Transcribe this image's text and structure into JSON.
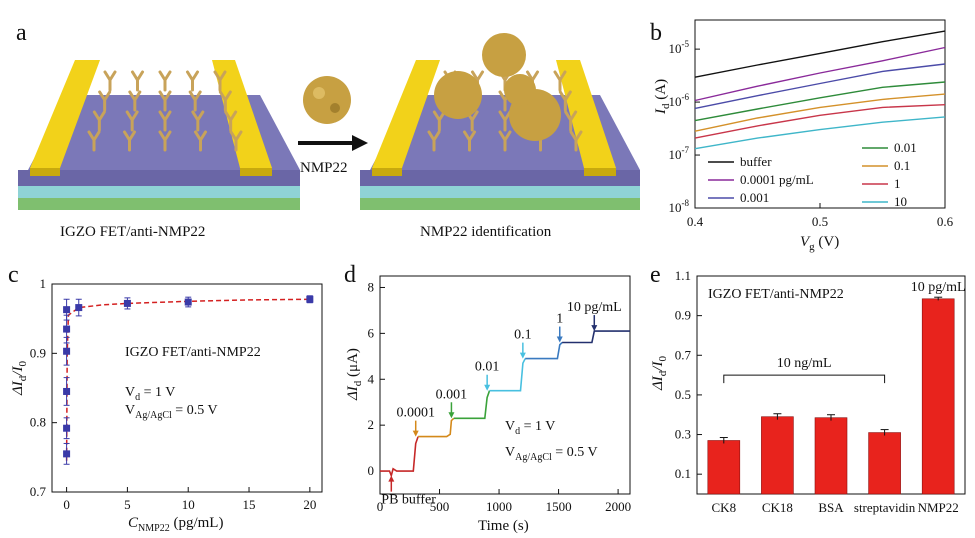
{
  "panels": {
    "a": {
      "label": "a",
      "left_caption": "IGZO FET/anti-NMP22",
      "right_caption": "NMP22 identification",
      "arrow_label": "NMP22"
    },
    "b": {
      "label": "b"
    },
    "c": {
      "label": "c"
    },
    "d": {
      "label": "d"
    },
    "e": {
      "label": "e"
    }
  },
  "colors": {
    "device_top": "#7b78b8",
    "device_side": "#6a66a6",
    "layer_cyan": "#8fd3d6",
    "layer_green": "#7fbf6f",
    "electrode": "#f2d21a",
    "electrode_side": "#c8a90e",
    "antibody": "#c8a35a",
    "protein": "#c7a042",
    "bar_red": "#e8231d",
    "marker_blue": "#3a3aa8",
    "fit_red": "#d42020"
  },
  "chart_data": [
    {
      "id": "b",
      "type": "line",
      "title": "",
      "xlabel": "V_g (V)",
      "xlabel_main": "V",
      "xlabel_sub": "g",
      "xlabel_unit": " (V)",
      "ylabel_main": "I",
      "ylabel_sub": "d",
      "ylabel_unit": " (A)",
      "yscale": "log",
      "xlim": [
        0.4,
        0.6
      ],
      "ylim_exp": [
        -8,
        -4.45
      ],
      "x_ticks": [
        "0.4",
        "0.5",
        "0.6"
      ],
      "x_tick_values": [
        0.4,
        0.5,
        0.6
      ],
      "y_ticks": [
        {
          "base": "10",
          "exp": "-5",
          "value": -5
        },
        {
          "base": "10",
          "exp": "-6",
          "value": -6
        },
        {
          "base": "10",
          "exp": "-7",
          "value": -7
        },
        {
          "base": "10",
          "exp": "-8",
          "value": -8
        }
      ],
      "x": [
        0.4,
        0.45,
        0.5,
        0.55,
        0.6
      ],
      "series": [
        {
          "name": "buffer",
          "color": "#111111",
          "log10_values": [
            -5.53,
            -5.3,
            -5.08,
            -4.86,
            -4.66
          ]
        },
        {
          "name": "0.0001 pg/mL",
          "color": "#8a2a9a",
          "log10_values": [
            -5.97,
            -5.7,
            -5.45,
            -5.22,
            -4.97
          ]
        },
        {
          "name": "0.001",
          "color": "#4b4ba8",
          "log10_values": [
            -6.12,
            -5.88,
            -5.65,
            -5.42,
            -5.28
          ]
        },
        {
          "name": "0.01",
          "color": "#2e8b3a",
          "log10_values": [
            -6.35,
            -6.13,
            -5.92,
            -5.72,
            -5.62
          ]
        },
        {
          "name": "0.1",
          "color": "#d4912a",
          "log10_values": [
            -6.55,
            -6.3,
            -6.1,
            -5.95,
            -5.85
          ]
        },
        {
          "name": "1",
          "color": "#c8364a",
          "log10_values": [
            -6.68,
            -6.45,
            -6.25,
            -6.1,
            -6.05
          ]
        },
        {
          "name": "10",
          "color": "#3fb6c9",
          "log10_values": [
            -6.88,
            -6.68,
            -6.52,
            -6.38,
            -6.28
          ]
        }
      ],
      "legend_col1": [
        "buffer",
        "0.0001 pg/mL",
        "0.001"
      ],
      "legend_col2": [
        "0.01",
        "0.1",
        "1",
        "10"
      ]
    },
    {
      "id": "c",
      "type": "scatter",
      "xlabel_main": "C",
      "xlabel_sub": "NMP22",
      "xlabel_unit": " (pg/mL)",
      "ylabel_main": "ΔI",
      "ylabel_sub": "d",
      "ylabel_mid": "/I",
      "ylabel_sub2": "0",
      "xlim": [
        -1.2,
        21
      ],
      "ylim": [
        0.7,
        1.0
      ],
      "x_ticks": [
        "0",
        "5",
        "10",
        "15",
        "20"
      ],
      "x_tick_values": [
        0,
        5,
        10,
        15,
        20
      ],
      "y_ticks": [
        "0.7",
        "0.8",
        "0.9",
        "1"
      ],
      "y_tick_values": [
        0.7,
        0.8,
        0.9,
        1.0
      ],
      "points": [
        {
          "x": 0.0,
          "y": 0.755,
          "err": 0.015
        },
        {
          "x": 0.0,
          "y": 0.792,
          "err": 0.015
        },
        {
          "x": 0.0,
          "y": 0.845,
          "err": 0.02
        },
        {
          "x": 0.0,
          "y": 0.903,
          "err": 0.02
        },
        {
          "x": 0.0,
          "y": 0.935,
          "err": 0.02
        },
        {
          "x": 0.0,
          "y": 0.963,
          "err": 0.015
        },
        {
          "x": 1.0,
          "y": 0.966,
          "err": 0.012
        },
        {
          "x": 5.0,
          "y": 0.972,
          "err": 0.008
        },
        {
          "x": 10.0,
          "y": 0.974,
          "err": 0.007
        },
        {
          "x": 20.0,
          "y": 0.978,
          "err": 0.005
        }
      ],
      "fit": [
        [
          0.0,
          0.745
        ],
        [
          0.05,
          0.9
        ],
        [
          0.15,
          0.955
        ],
        [
          1.0,
          0.966
        ],
        [
          3,
          0.97
        ],
        [
          5,
          0.972
        ],
        [
          10,
          0.975
        ],
        [
          15,
          0.977
        ],
        [
          20,
          0.978
        ]
      ],
      "ann_title": "IGZO FET/anti-NMP22",
      "ann_vd_main": "V",
      "ann_vd_sub": "d",
      "ann_vd_val": " = 1 V",
      "ann_vg_main": "V",
      "ann_vg_sub": "Ag/AgCl",
      "ann_vg_val": " = 0.5 V"
    },
    {
      "id": "d",
      "type": "line",
      "xlabel": "Time (s)",
      "ylabel_main": "ΔI",
      "ylabel_sub": "d",
      "ylabel_unit": " (μA)",
      "xlim": [
        0,
        2100
      ],
      "ylim": [
        -1,
        8.5
      ],
      "x_ticks": [
        "0",
        "500",
        "1000",
        "1500",
        "2000"
      ],
      "x_tick_values": [
        0,
        500,
        1000,
        1500,
        2000
      ],
      "y_ticks": [
        "0",
        "2",
        "4",
        "6",
        "8"
      ],
      "y_tick_values": [
        0,
        2,
        4,
        6,
        8
      ],
      "segments": [
        {
          "color": "#c62828",
          "points": [
            [
              0,
              0.0
            ],
            [
              80,
              0.0
            ],
            [
              95,
              -0.2
            ],
            [
              110,
              0.1
            ],
            [
              140,
              0.0
            ],
            [
              280,
              0.0
            ],
            [
              300,
              1.2
            ],
            [
              320,
              1.5
            ]
          ]
        },
        {
          "color": "#d4891a",
          "points": [
            [
              320,
              1.5
            ],
            [
              560,
              1.5
            ],
            [
              590,
              1.6
            ],
            [
              600,
              2.2
            ],
            [
              620,
              2.3
            ]
          ]
        },
        {
          "color": "#3aa23a",
          "points": [
            [
              620,
              2.3
            ],
            [
              880,
              2.3
            ],
            [
              900,
              3.2
            ],
            [
              920,
              3.5
            ]
          ]
        },
        {
          "color": "#48c0e0",
          "points": [
            [
              920,
              3.5
            ],
            [
              1180,
              3.5
            ],
            [
              1200,
              4.7
            ],
            [
              1220,
              4.9
            ]
          ]
        },
        {
          "color": "#3a7ac0",
          "points": [
            [
              1220,
              4.9
            ],
            [
              1490,
              4.9
            ],
            [
              1510,
              5.5
            ],
            [
              1530,
              5.6
            ]
          ]
        },
        {
          "color": "#23306e",
          "points": [
            [
              1530,
              5.6
            ],
            [
              1780,
              5.6
            ],
            [
              1800,
              6.1
            ],
            [
              2100,
              6.1
            ]
          ]
        }
      ],
      "injections": [
        {
          "label": "PB buffer",
          "t": 95,
          "y": -0.2,
          "color": "#c62828",
          "below": true
        },
        {
          "label": "0.0001",
          "t": 300,
          "y": 1.5,
          "color": "#d4891a",
          "below": false
        },
        {
          "label": "0.001",
          "t": 600,
          "y": 2.3,
          "color": "#3aa23a",
          "below": false
        },
        {
          "label": "0.01",
          "t": 900,
          "y": 3.5,
          "color": "#48c0e0",
          "below": false
        },
        {
          "label": "0.1",
          "t": 1200,
          "y": 4.9,
          "color": "#48c0e0",
          "below": false
        },
        {
          "label": "1",
          "t": 1510,
          "y": 5.6,
          "color": "#3a7ac0",
          "below": false
        },
        {
          "label": "10 pg/mL",
          "t": 1800,
          "y": 6.1,
          "color": "#23306e",
          "below": false
        }
      ],
      "ann_vd_main": "V",
      "ann_vd_sub": "d",
      "ann_vd_val": " = 1 V",
      "ann_vg_main": "V",
      "ann_vg_sub": "Ag/AgCl",
      "ann_vg_val": " = 0.5 V"
    },
    {
      "id": "e",
      "type": "bar",
      "title": "IGZO FET/anti-NMP22",
      "ylabel_main": "ΔI",
      "ylabel_sub": "d",
      "ylabel_mid": "/I",
      "ylabel_sub2": "0",
      "ylim": [
        0.0,
        1.1
      ],
      "y_ticks": [
        "0.1",
        "0.3",
        "0.5",
        "0.7",
        "0.9",
        "1.1"
      ],
      "y_tick_values": [
        0.1,
        0.3,
        0.5,
        0.7,
        0.9,
        1.1
      ],
      "categories": [
        "CK8",
        "CK18",
        "BSA",
        "streptavidin",
        "NMP22"
      ],
      "values": [
        0.27,
        0.39,
        0.385,
        0.31,
        0.985
      ],
      "errors": [
        0.015,
        0.015,
        0.015,
        0.015,
        0.008
      ],
      "bracket_label": "10 ng/mL",
      "top_label": "10 pg/mL"
    }
  ]
}
